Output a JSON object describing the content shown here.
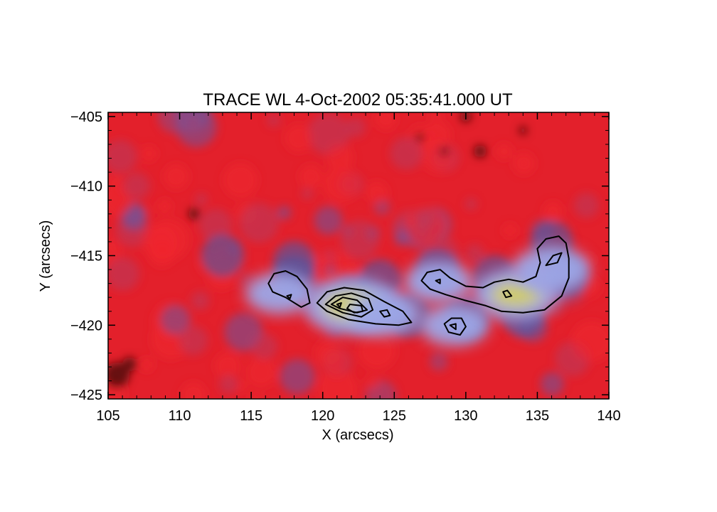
{
  "chart_data": {
    "type": "heatmap",
    "title": "TRACE WL   4-Oct-2002 05:35:41.000 UT",
    "xlabel": "X (arcsecs)",
    "ylabel": "Y (arcsecs)",
    "xlim": [
      105,
      140
    ],
    "ylim": [
      -425.3,
      -404.7
    ],
    "x_ticks": [
      105,
      110,
      115,
      120,
      125,
      130,
      135,
      140
    ],
    "y_ticks": [
      -405,
      -410,
      -415,
      -420,
      -425
    ],
    "x_tick_labels": [
      "105",
      "110",
      "115",
      "120",
      "125",
      "130",
      "135",
      "140"
    ],
    "y_tick_labels": [
      "−405",
      "−410",
      "−415",
      "−420",
      "−425"
    ],
    "grid": false,
    "legend": "none",
    "colors": {
      "background_field": "#e8202c",
      "background_dark": "#7a1018",
      "mid_tone": "#6070b8",
      "bright": "#9ca8e8",
      "peak": "#d0cc68",
      "peak_max": "#ffffff",
      "contour": "#000000"
    },
    "bright_regions": [
      {
        "name": "kernel-116",
        "x": 117,
        "y": -417.7,
        "level": 0.55
      },
      {
        "name": "kernel-122",
        "x": 122,
        "y": -418.6,
        "level": 1.0
      },
      {
        "name": "kernel-124",
        "x": 124.3,
        "y": -419.2,
        "level": 0.6
      },
      {
        "name": "kernel-129",
        "x": 129.2,
        "y": -420.0,
        "level": 0.55
      },
      {
        "name": "kernel-128",
        "x": 128.1,
        "y": -416.9,
        "level": 0.55
      },
      {
        "name": "kernel-133",
        "x": 133.5,
        "y": -417.8,
        "level": 0.85
      },
      {
        "name": "kernel-136",
        "x": 136,
        "y": -416.0,
        "level": 0.7
      }
    ],
    "contours": [
      {
        "name": "contour-116-outer",
        "points": [
          [
            116.2,
            -417.0
          ],
          [
            116.6,
            -416.3
          ],
          [
            117.4,
            -416.1
          ],
          [
            118.2,
            -416.5
          ],
          [
            118.9,
            -417.4
          ],
          [
            119.1,
            -418.4
          ],
          [
            118.5,
            -418.7
          ],
          [
            117.4,
            -418.0
          ],
          [
            116.5,
            -417.6
          ]
        ]
      },
      {
        "name": "contour-117-inner",
        "points": [
          [
            117.5,
            -417.9
          ],
          [
            117.8,
            -417.8
          ],
          [
            117.7,
            -418.1
          ]
        ]
      },
      {
        "name": "contour-122-outer",
        "points": [
          [
            119.6,
            -418.4
          ],
          [
            120.3,
            -417.6
          ],
          [
            121.5,
            -417.3
          ],
          [
            122.9,
            -417.5
          ],
          [
            124.3,
            -418.3
          ],
          [
            125.6,
            -419.0
          ],
          [
            126.2,
            -419.8
          ],
          [
            125.3,
            -420.0
          ],
          [
            123.7,
            -419.9
          ],
          [
            121.8,
            -419.6
          ],
          [
            120.3,
            -419.0
          ]
        ]
      },
      {
        "name": "contour-122-mid",
        "points": [
          [
            120.2,
            -418.5
          ],
          [
            120.9,
            -417.9
          ],
          [
            122.0,
            -417.7
          ],
          [
            123.2,
            -418.1
          ],
          [
            123.5,
            -418.9
          ],
          [
            122.7,
            -419.4
          ],
          [
            121.4,
            -419.1
          ]
        ]
      },
      {
        "name": "contour-122-inner",
        "points": [
          [
            120.6,
            -418.5
          ],
          [
            121.4,
            -418.0
          ],
          [
            122.4,
            -418.2
          ],
          [
            123.1,
            -418.9
          ],
          [
            122.4,
            -419.1
          ],
          [
            121.2,
            -418.8
          ]
        ]
      },
      {
        "name": "contour-122-core",
        "points": [
          [
            121.9,
            -418.5
          ],
          [
            122.7,
            -418.6
          ],
          [
            122.8,
            -419.0
          ],
          [
            122.2,
            -419.1
          ],
          [
            121.7,
            -418.8
          ]
        ]
      },
      {
        "name": "contour-121-dot",
        "points": [
          [
            121.0,
            -418.5
          ],
          [
            121.3,
            -418.4
          ],
          [
            121.2,
            -418.7
          ]
        ]
      },
      {
        "name": "contour-124-small",
        "points": [
          [
            124.0,
            -419.0
          ],
          [
            124.5,
            -418.9
          ],
          [
            124.7,
            -419.3
          ],
          [
            124.3,
            -419.4
          ]
        ]
      },
      {
        "name": "contour-129-outer",
        "points": [
          [
            128.5,
            -419.9
          ],
          [
            129.0,
            -419.5
          ],
          [
            129.7,
            -419.5
          ],
          [
            130.0,
            -420.1
          ],
          [
            129.6,
            -420.7
          ],
          [
            128.8,
            -420.5
          ]
        ]
      },
      {
        "name": "contour-129-inner",
        "points": [
          [
            128.9,
            -420.0
          ],
          [
            129.3,
            -419.9
          ],
          [
            129.3,
            -420.3
          ]
        ]
      },
      {
        "name": "contour-128-inner",
        "points": [
          [
            127.9,
            -416.8
          ],
          [
            128.2,
            -416.7
          ],
          [
            128.2,
            -417.0
          ]
        ]
      },
      {
        "name": "contour-right-arc",
        "points": [
          [
            126.9,
            -416.8
          ],
          [
            127.3,
            -416.2
          ],
          [
            128.2,
            -416.0
          ],
          [
            128.9,
            -416.6
          ],
          [
            130.0,
            -417.2
          ],
          [
            131.2,
            -417.3
          ],
          [
            132.0,
            -416.9
          ],
          [
            133.0,
            -416.7
          ],
          [
            134.0,
            -416.9
          ],
          [
            134.9,
            -416.5
          ],
          [
            135.2,
            -415.5
          ],
          [
            135.0,
            -414.5
          ],
          [
            135.6,
            -413.8
          ],
          [
            136.5,
            -413.6
          ],
          [
            137.0,
            -414.1
          ],
          [
            137.2,
            -415.2
          ],
          [
            137.2,
            -416.6
          ],
          [
            136.7,
            -417.9
          ],
          [
            135.5,
            -418.9
          ],
          [
            134.0,
            -419.1
          ],
          [
            132.5,
            -419.0
          ],
          [
            131.4,
            -418.6
          ],
          [
            129.9,
            -418.2
          ],
          [
            128.6,
            -417.8
          ],
          [
            127.5,
            -417.4
          ]
        ]
      },
      {
        "name": "contour-136-inner",
        "points": [
          [
            135.6,
            -415.7
          ],
          [
            136.1,
            -415.0
          ],
          [
            136.7,
            -414.8
          ],
          [
            136.4,
            -415.5
          ]
        ]
      },
      {
        "name": "contour-133-inner",
        "points": [
          [
            132.6,
            -417.6
          ],
          [
            132.9,
            -417.5
          ],
          [
            133.2,
            -417.9
          ],
          [
            132.8,
            -418.0
          ]
        ]
      }
    ]
  }
}
